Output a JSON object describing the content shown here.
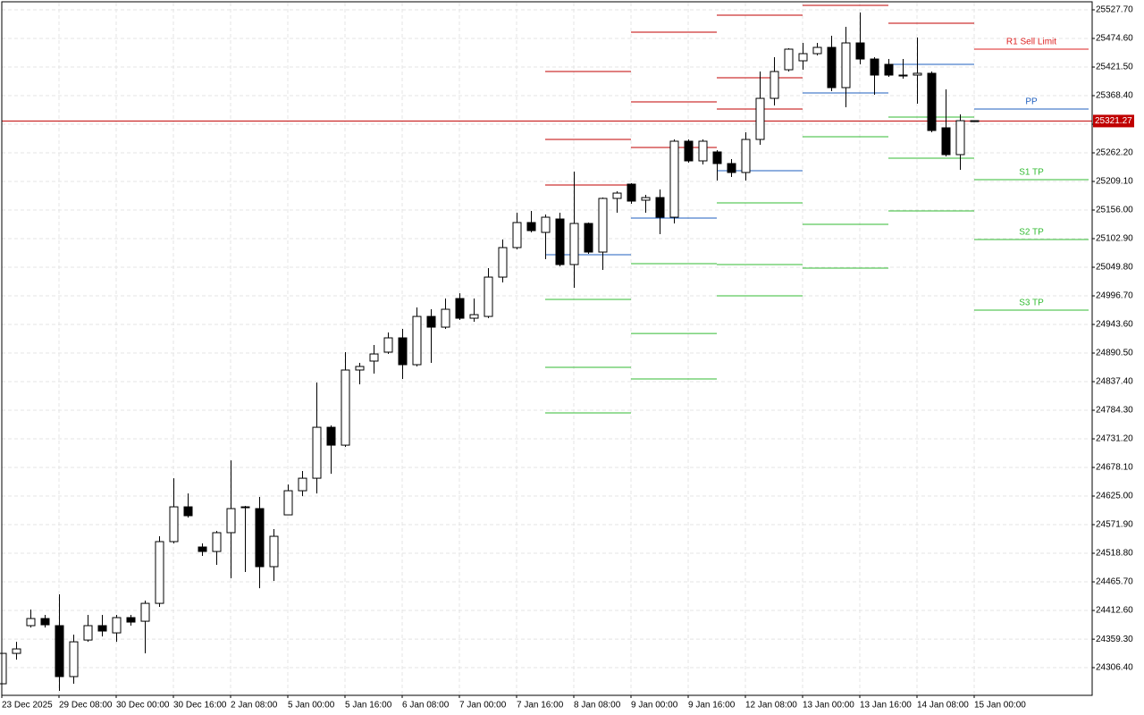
{
  "chart_data": {
    "type": "candlestick",
    "categories": [
      "23 Dec 2025",
      null,
      null,
      null,
      "29 Dec 08:00",
      null,
      null,
      null,
      "30 Dec 00:00",
      null,
      null,
      null,
      "30 Dec 16:00",
      null,
      null,
      null,
      "2 Jan 08:00",
      null,
      null,
      null,
      "5 Jan 00:00",
      null,
      null,
      null,
      "5 Jan 16:00",
      null,
      null,
      null,
      "6 Jan 08:00",
      null,
      null,
      null,
      "7 Jan 00:00",
      null,
      null,
      null,
      "7 Jan 16:00",
      null,
      null,
      null,
      "8 Jan 08:00",
      null,
      null,
      null,
      "9 Jan 00:00",
      null,
      null,
      null,
      "9 Jan 16:00",
      null,
      null,
      null,
      "12 Jan 08:00",
      null,
      null,
      null,
      "13 Jan 00:00",
      null,
      null,
      null,
      "13 Jan 16:00",
      null,
      null,
      null,
      "14 Jan 08:00",
      null,
      null,
      null,
      "15 Jan 00:00"
    ],
    "open": [
      24276.5,
      24332.9,
      24384.4,
      24397.6,
      24384.4,
      24289.8,
      24357.7,
      24384.4,
      24371.0,
      24399.3,
      24392.6,
      24425.8,
      24540.4,
      24605.0,
      24530.4,
      24522.1,
      24557.0,
      24605.0,
      24601.7,
      24493.9,
      24590.1,
      24634.9,
      24658.1,
      24752.7,
      24719.5,
      24859.0,
      24875.6,
      24892.2,
      24918.7,
      24868.9,
      24958.5,
      24938.6,
      24991.7,
      24955.2,
      24958.5,
      25031.5,
      25086.3,
      25132.8,
      25114.5,
      25139.4,
      25054.8,
      25131.1,
      25078.0,
      25177.6,
      25204.1,
      25174.3,
      25179.2,
      25142.7,
      25283.8,
      25247.3,
      25263.9,
      25242.3,
      25225.7,
      25287.1,
      25363.4,
      25416.5,
      25433.1,
      25446.4,
      25458.0,
      25383.3,
      25466.3,
      25436.4,
      25426.5,
      25406.6,
      25406.6,
      25409.9,
      25308.7,
      25258.9,
      25321.9
    ],
    "high": [
      24332.9,
      24354.4,
      24414.2,
      24404.3,
      24442.5,
      24367.7,
      24404.3,
      24404.3,
      24404.3,
      24404.3,
      24430.8,
      24550.3,
      24658.1,
      24629.9,
      24537.1,
      24560.3,
      24691.3,
      24606.7,
      24623.3,
      24563.6,
      24646.5,
      24671.4,
      24835.7,
      24756.1,
      24892.2,
      24872.2,
      24905.4,
      24928.6,
      24935.3,
      24975.1,
      24971.8,
      24991.7,
      25001.6,
      24991.7,
      25048.1,
      25101.2,
      25151.0,
      25154.3,
      25147.7,
      25151.0,
      25227.3,
      25132.8,
      25179.2,
      25190.8,
      25205.8,
      25184.2,
      25194.1,
      25287.1,
      25287.1,
      25287.1,
      25267.2,
      25250.6,
      25300.4,
      25413.2,
      25439.7,
      25456.4,
      25466.3,
      25466.3,
      25479.6,
      25496.2,
      25522.7,
      25439.7,
      25436.4,
      25436.4,
      25476.3,
      25413.2,
      25380.0,
      25333.5,
      25322.5
    ],
    "low": [
      24276.5,
      24321.3,
      24381.0,
      24381.0,
      24263.2,
      24276.5,
      24354.4,
      24364.4,
      24354.4,
      24384.4,
      24332.9,
      24419.2,
      24537.1,
      24585.1,
      24513.8,
      24497.2,
      24472.3,
      24483.9,
      24454.0,
      24467.3,
      24590.1,
      24624.9,
      24629.9,
      24666.4,
      24716.2,
      24832.4,
      24852.3,
      24888.8,
      24842.4,
      24865.6,
      24872.2,
      24935.3,
      24951.9,
      24948.6,
      24955.2,
      25021.6,
      25083.0,
      25114.5,
      25064.7,
      25051.4,
      25011.6,
      25074.7,
      25044.8,
      25151.0,
      25167.6,
      25151.0,
      25111.2,
      25131.1,
      25243.9,
      25240.6,
      25210.7,
      25217.4,
      25210.7,
      25277.1,
      25350.1,
      25413.2,
      25416.5,
      25443.1,
      25376.7,
      25346.8,
      25426.5,
      25370.0,
      25403.2,
      25399.9,
      25353.4,
      25300.4,
      25255.6,
      25230.7,
      25320.3
    ],
    "close": [
      24332.9,
      24341.2,
      24397.6,
      24386.0,
      24289.8,
      24354.4,
      24384.4,
      24374.4,
      24399.3,
      24391.0,
      24425.8,
      24540.4,
      24605.0,
      24588.5,
      24522.1,
      24557.0,
      24601.7,
      24603.4,
      24493.9,
      24550.3,
      24634.9,
      24658.1,
      24752.7,
      24719.5,
      24859.0,
      24865.6,
      24888.8,
      24918.7,
      24868.9,
      24958.5,
      24938.6,
      24971.8,
      24955.2,
      24961.8,
      25031.5,
      25086.3,
      25132.8,
      25117.8,
      25142.7,
      25054.8,
      25131.1,
      25078.0,
      25177.6,
      25187.5,
      25172.6,
      25179.2,
      25142.7,
      25283.8,
      25247.3,
      25283.8,
      25242.3,
      25225.7,
      25287.1,
      25363.4,
      25413.2,
      25454.7,
      25446.4,
      25458.0,
      25383.3,
      25466.3,
      25436.4,
      25406.6,
      25406.6,
      25404.9,
      25409.9,
      25303.7,
      25258.9,
      25321.9,
      25321.27
    ],
    "up_color": "#ffffff",
    "down_color": "#000000",
    "ylim": [
      24255,
      25541
    ],
    "yticks": [
      {
        "value": 24306.4,
        "label": "24306.40"
      },
      {
        "value": 24359.3,
        "label": "24359.30"
      },
      {
        "value": 24412.6,
        "label": "24412.60"
      },
      {
        "value": 24465.7,
        "label": "24465.70"
      },
      {
        "value": 24518.8,
        "label": "24518.80"
      },
      {
        "value": 24571.9,
        "label": "24571.90"
      },
      {
        "value": 24625.0,
        "label": "24625.00"
      },
      {
        "value": 24678.1,
        "label": "24678.10"
      },
      {
        "value": 24731.2,
        "label": "24731.20"
      },
      {
        "value": 24784.3,
        "label": "24784.30"
      },
      {
        "value": 24837.4,
        "label": "24837.40"
      },
      {
        "value": 24890.5,
        "label": "24890.50"
      },
      {
        "value": 24943.6,
        "label": "24943.60"
      },
      {
        "value": 24996.7,
        "label": "24996.70"
      },
      {
        "value": 25049.8,
        "label": "25049.80"
      },
      {
        "value": 25102.9,
        "label": "25102.90"
      },
      {
        "value": 25156.0,
        "label": "25156.00"
      },
      {
        "value": 25209.1,
        "label": "25209.10"
      },
      {
        "value": 25262.2,
        "label": "25262.20"
      },
      {
        "value": 25315.3,
        "label": "25315.30"
      },
      {
        "value": 25368.4,
        "label": "25368.40"
      },
      {
        "value": 25421.5,
        "label": "25421.50"
      },
      {
        "value": 25474.6,
        "label": "25474.60"
      },
      {
        "value": 25527.7,
        "label": "25527.70"
      }
    ],
    "grid": true,
    "current_price": 25321.27,
    "current_price_color": "#c00000",
    "levels": [
      {
        "x": [
          38,
          44
        ],
        "lines": [
          {
            "value": 25413.2,
            "color": "#c00000"
          },
          {
            "value": 25287.1,
            "color": "#c00000"
          },
          {
            "value": 25202.4,
            "color": "#c00000"
          },
          {
            "value": 25073.0,
            "color": "#1f5fbf"
          },
          {
            "value": 24990.0,
            "color": "#33bb33"
          },
          {
            "value": 24863.9,
            "color": "#33bb33"
          },
          {
            "value": 24779.3,
            "color": "#33bb33"
          }
        ]
      },
      {
        "x": [
          44,
          50
        ],
        "lines": [
          {
            "value": 25486.2,
            "color": "#c00000"
          },
          {
            "value": 25356.8,
            "color": "#c00000"
          },
          {
            "value": 25272.1,
            "color": "#c00000"
          },
          {
            "value": 25141.0,
            "color": "#1f5fbf"
          },
          {
            "value": 25056.4,
            "color": "#33bb33"
          },
          {
            "value": 24926.9,
            "color": "#33bb33"
          },
          {
            "value": 24842.4,
            "color": "#33bb33"
          }
        ]
      },
      {
        "x": [
          50,
          56
        ],
        "lines": [
          {
            "value": 25517.7,
            "color": "#c00000"
          },
          {
            "value": 25401.6,
            "color": "#c00000"
          },
          {
            "value": 25343.5,
            "color": "#c00000"
          },
          {
            "value": 25229.0,
            "color": "#1f5fbf"
          },
          {
            "value": 25169.3,
            "color": "#33bb33"
          },
          {
            "value": 25054.8,
            "color": "#33bb33"
          },
          {
            "value": 24996.7,
            "color": "#33bb33"
          }
        ]
      },
      {
        "x": [
          56,
          62
        ],
        "lines": [
          {
            "value": 25536.0,
            "color": "#c00000"
          },
          {
            "value": 25373.4,
            "color": "#1f5fbf"
          },
          {
            "value": 25292.1,
            "color": "#33bb33"
          },
          {
            "value": 25129.4,
            "color": "#33bb33"
          },
          {
            "value": 25048.1,
            "color": "#33bb33"
          }
        ]
      },
      {
        "x": [
          62,
          68
        ],
        "lines": [
          {
            "value": 25502.8,
            "color": "#c00000"
          },
          {
            "value": 25426.5,
            "color": "#1f5fbf"
          },
          {
            "value": 25328.6,
            "color": "#33bb33"
          },
          {
            "value": 25252.2,
            "color": "#33bb33"
          },
          {
            "value": 25154.3,
            "color": "#33bb33"
          }
        ]
      },
      {
        "x": [
          68,
          76
        ],
        "lines": [
          {
            "value": 25454.7,
            "color": "#dd2222",
            "label": "R1 Sell Limit"
          },
          {
            "value": 25343.5,
            "color": "#1f5fbf",
            "label": "PP"
          },
          {
            "value": 25212.4,
            "color": "#33bb33",
            "label": "S1 TP"
          },
          {
            "value": 25101.2,
            "color": "#33bb33",
            "label": "S2 TP"
          },
          {
            "value": 24970.1,
            "color": "#33bb33",
            "label": "S3 TP"
          }
        ]
      }
    ]
  }
}
